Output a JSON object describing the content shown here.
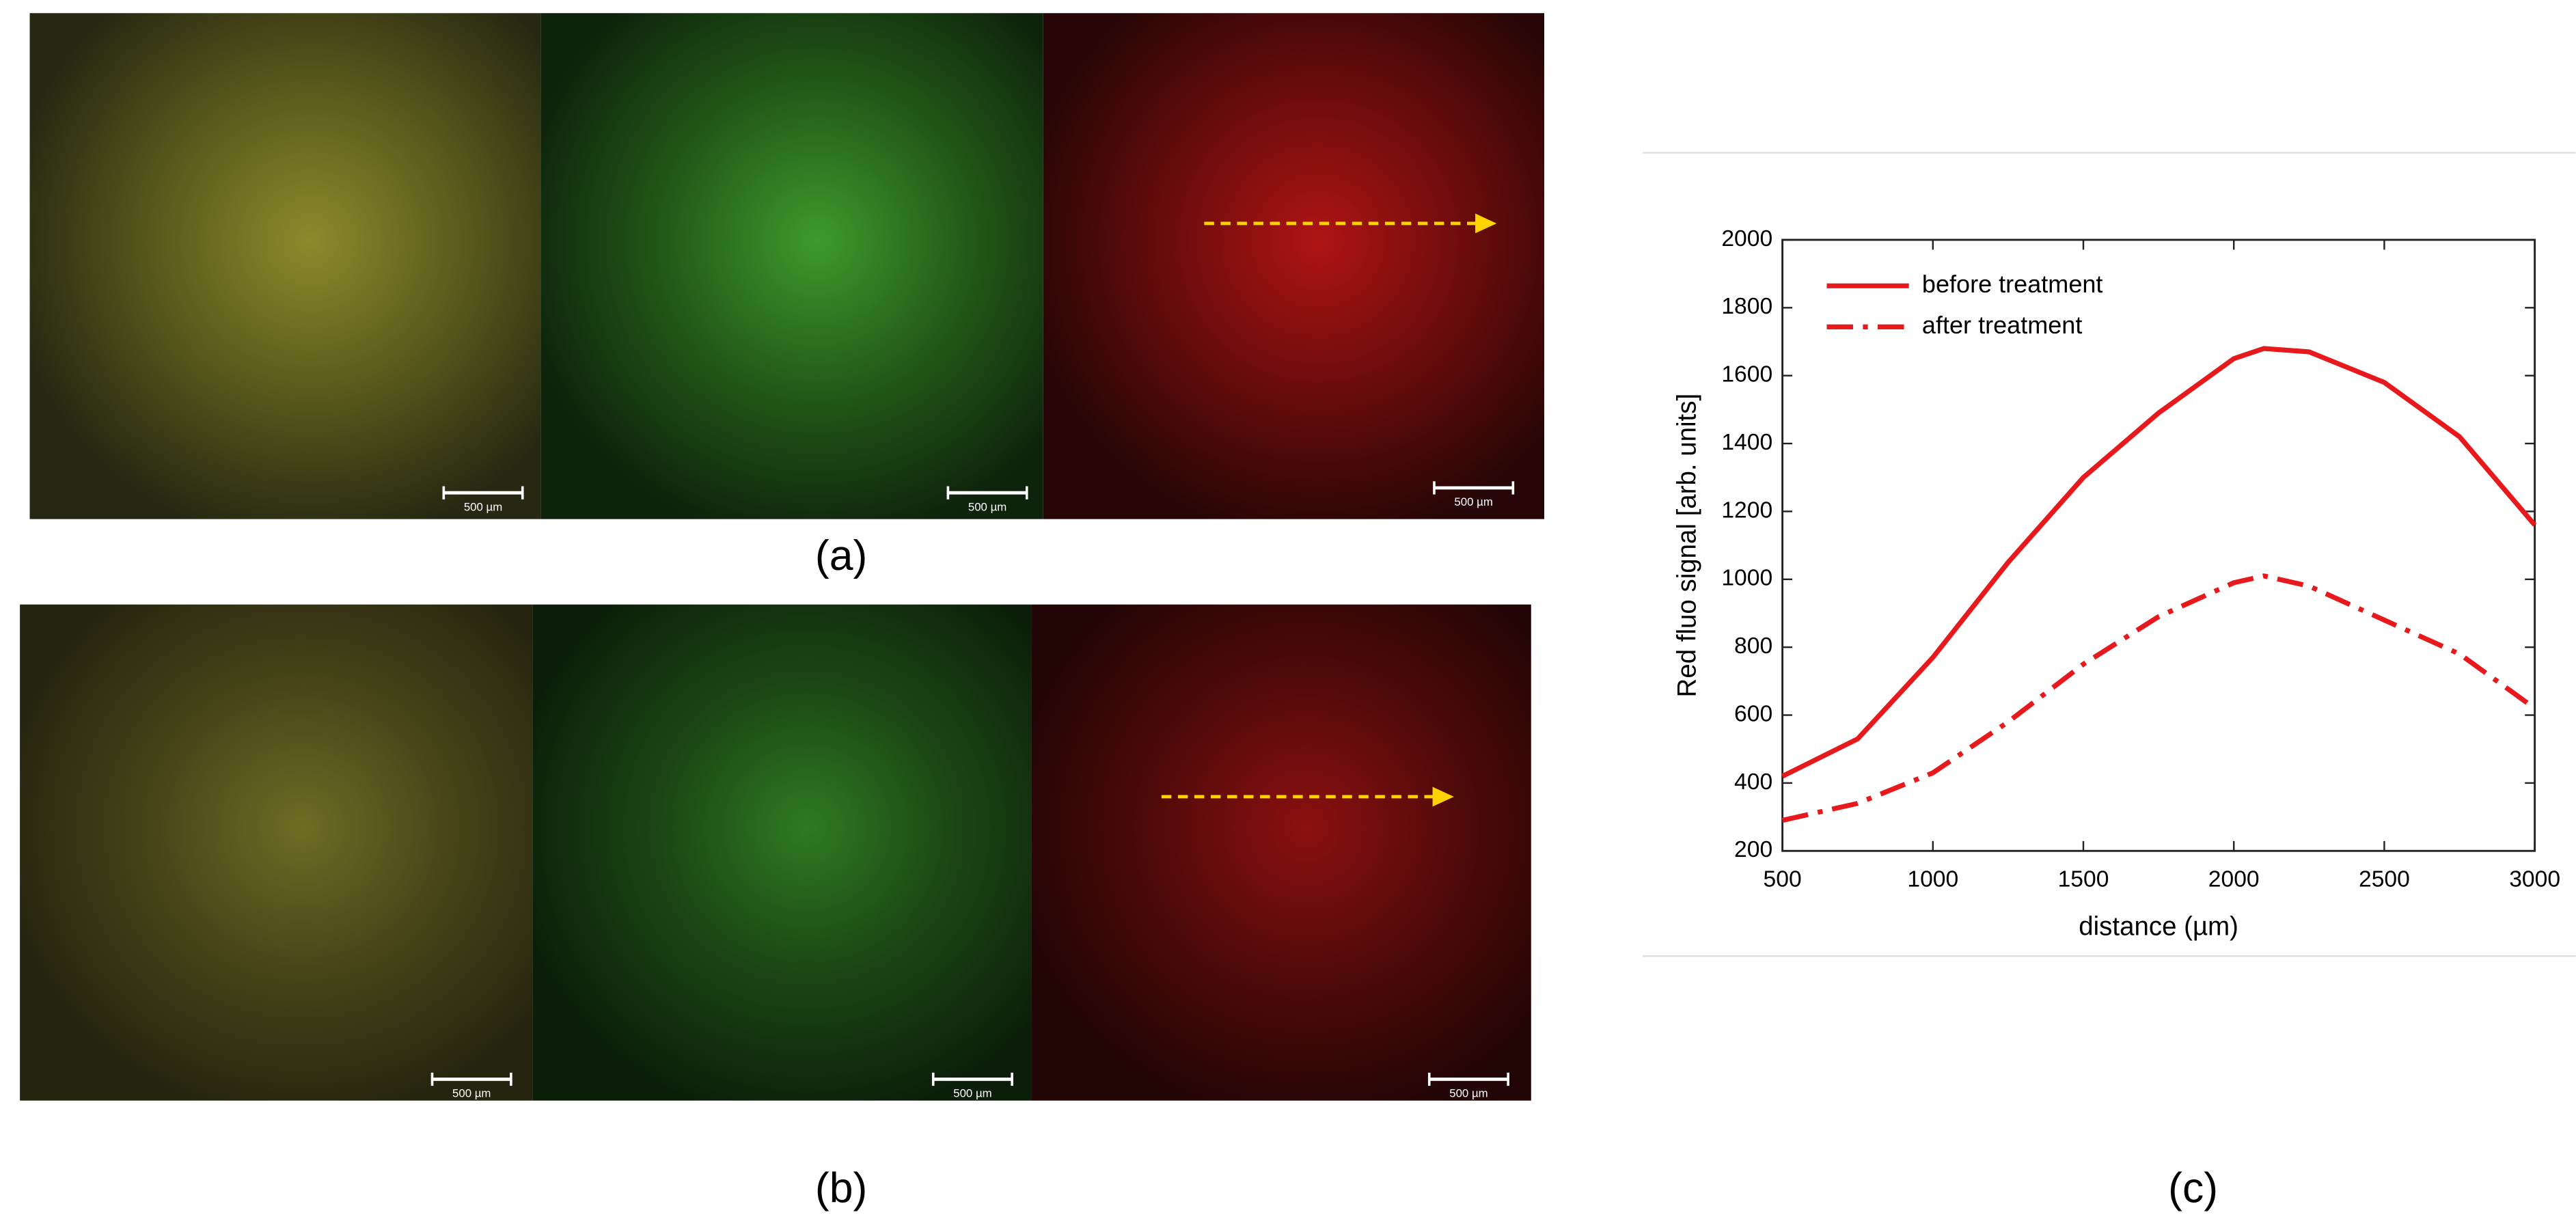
{
  "figure": {
    "panel_labels": [
      "(a)",
      "(b)",
      "(c)"
    ],
    "scale_bar_labels": [
      "500 µm",
      "500 µm",
      "500 µm",
      "500 µm",
      "500 µm",
      "500 µm"
    ]
  },
  "chart_data": {
    "type": "line",
    "xlabel": "distance (µm)",
    "ylabel": "Red fluo signal [arb. units]",
    "x": [
      500,
      750,
      1000,
      1250,
      1500,
      1750,
      2000,
      2100,
      2250,
      2500,
      2750,
      3000
    ],
    "series": [
      {
        "name": "before treatment",
        "color": "#e8191c",
        "line_style": "solid",
        "values": [
          420,
          530,
          770,
          1050,
          1300,
          1490,
          1650,
          1680,
          1670,
          1580,
          1420,
          1160
        ]
      },
      {
        "name": "after treatment",
        "color": "#e8191c",
        "line_style": "dashdot",
        "values": [
          290,
          340,
          430,
          580,
          750,
          890,
          990,
          1010,
          980,
          880,
          780,
          620
        ]
      }
    ],
    "xlim": [
      500,
      3000
    ],
    "xticks": [
      500,
      1000,
      1500,
      2000,
      2500,
      3000
    ],
    "ylim": [
      200,
      2000
    ],
    "yticks": [
      200,
      400,
      600,
      800,
      1000,
      1200,
      1400,
      1600,
      1800,
      2000
    ],
    "grid": false,
    "legend": "upper left"
  }
}
